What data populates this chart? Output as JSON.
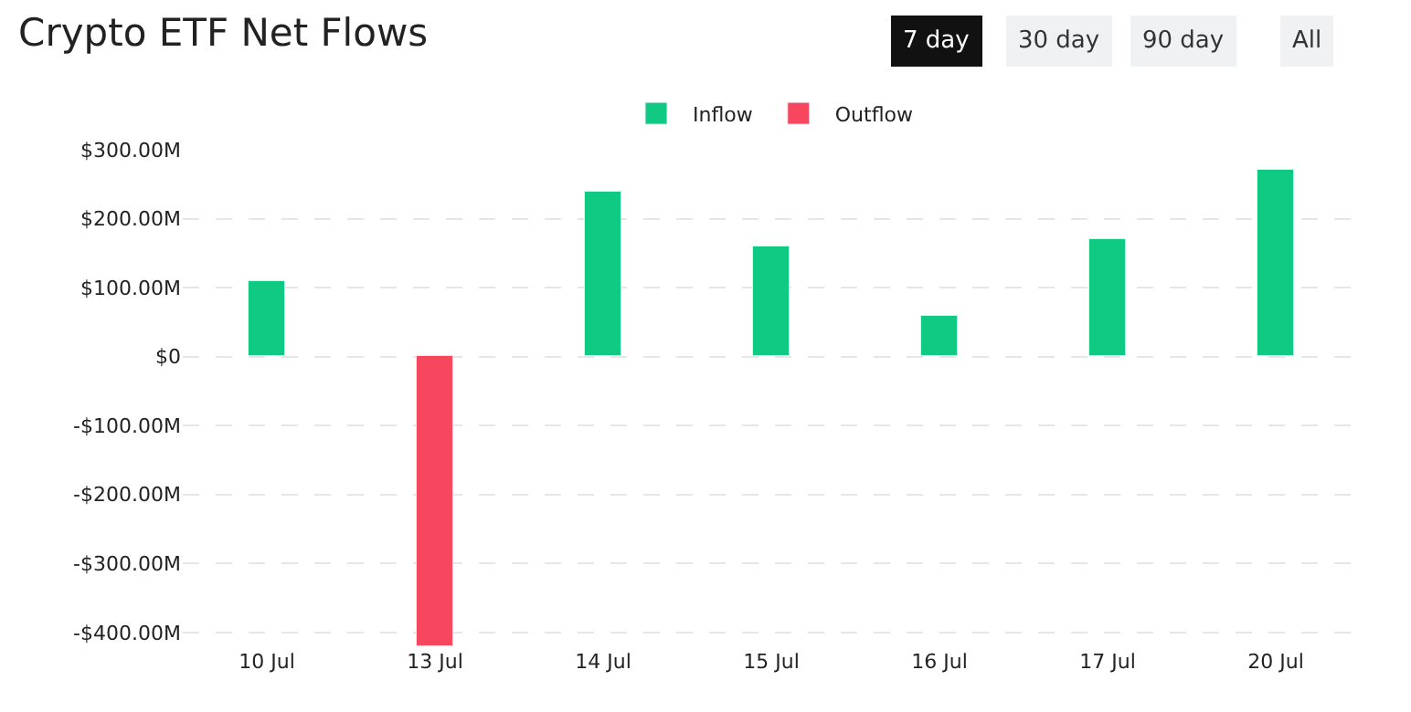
{
  "chart_data": {
    "type": "bar",
    "title": "Crypto ETF Net Flows",
    "categories": [
      "10 Jul",
      "13 Jul",
      "14 Jul",
      "15 Jul",
      "16 Jul",
      "17 Jul",
      "20 Jul"
    ],
    "series": [
      {
        "name": "Inflow",
        "color": "#10ca84",
        "values": [
          110,
          null,
          240,
          161,
          59,
          169,
          270
        ]
      },
      {
        "name": "Outflow",
        "color": "#f6475e",
        "values": [
          null,
          -420,
          null,
          null,
          null,
          null,
          null
        ]
      }
    ],
    "ylim": [
      -420,
      300
    ],
    "yticks": [
      {
        "value": 300,
        "label": "$300.00M"
      },
      {
        "value": 200,
        "label": "$200.00M"
      },
      {
        "value": 100,
        "label": "$100.00M"
      },
      {
        "value": 0,
        "label": "$0"
      },
      {
        "value": -100,
        "label": "-$100.00M"
      },
      {
        "value": -200,
        "label": "-$200.00M"
      },
      {
        "value": -300,
        "label": "-$300.00M"
      },
      {
        "value": -400,
        "label": "-$400.00M"
      }
    ],
    "grid": "y",
    "legend": "top",
    "annotations": [
      "7 day",
      "30 day",
      "90 day",
      "All"
    ]
  }
}
